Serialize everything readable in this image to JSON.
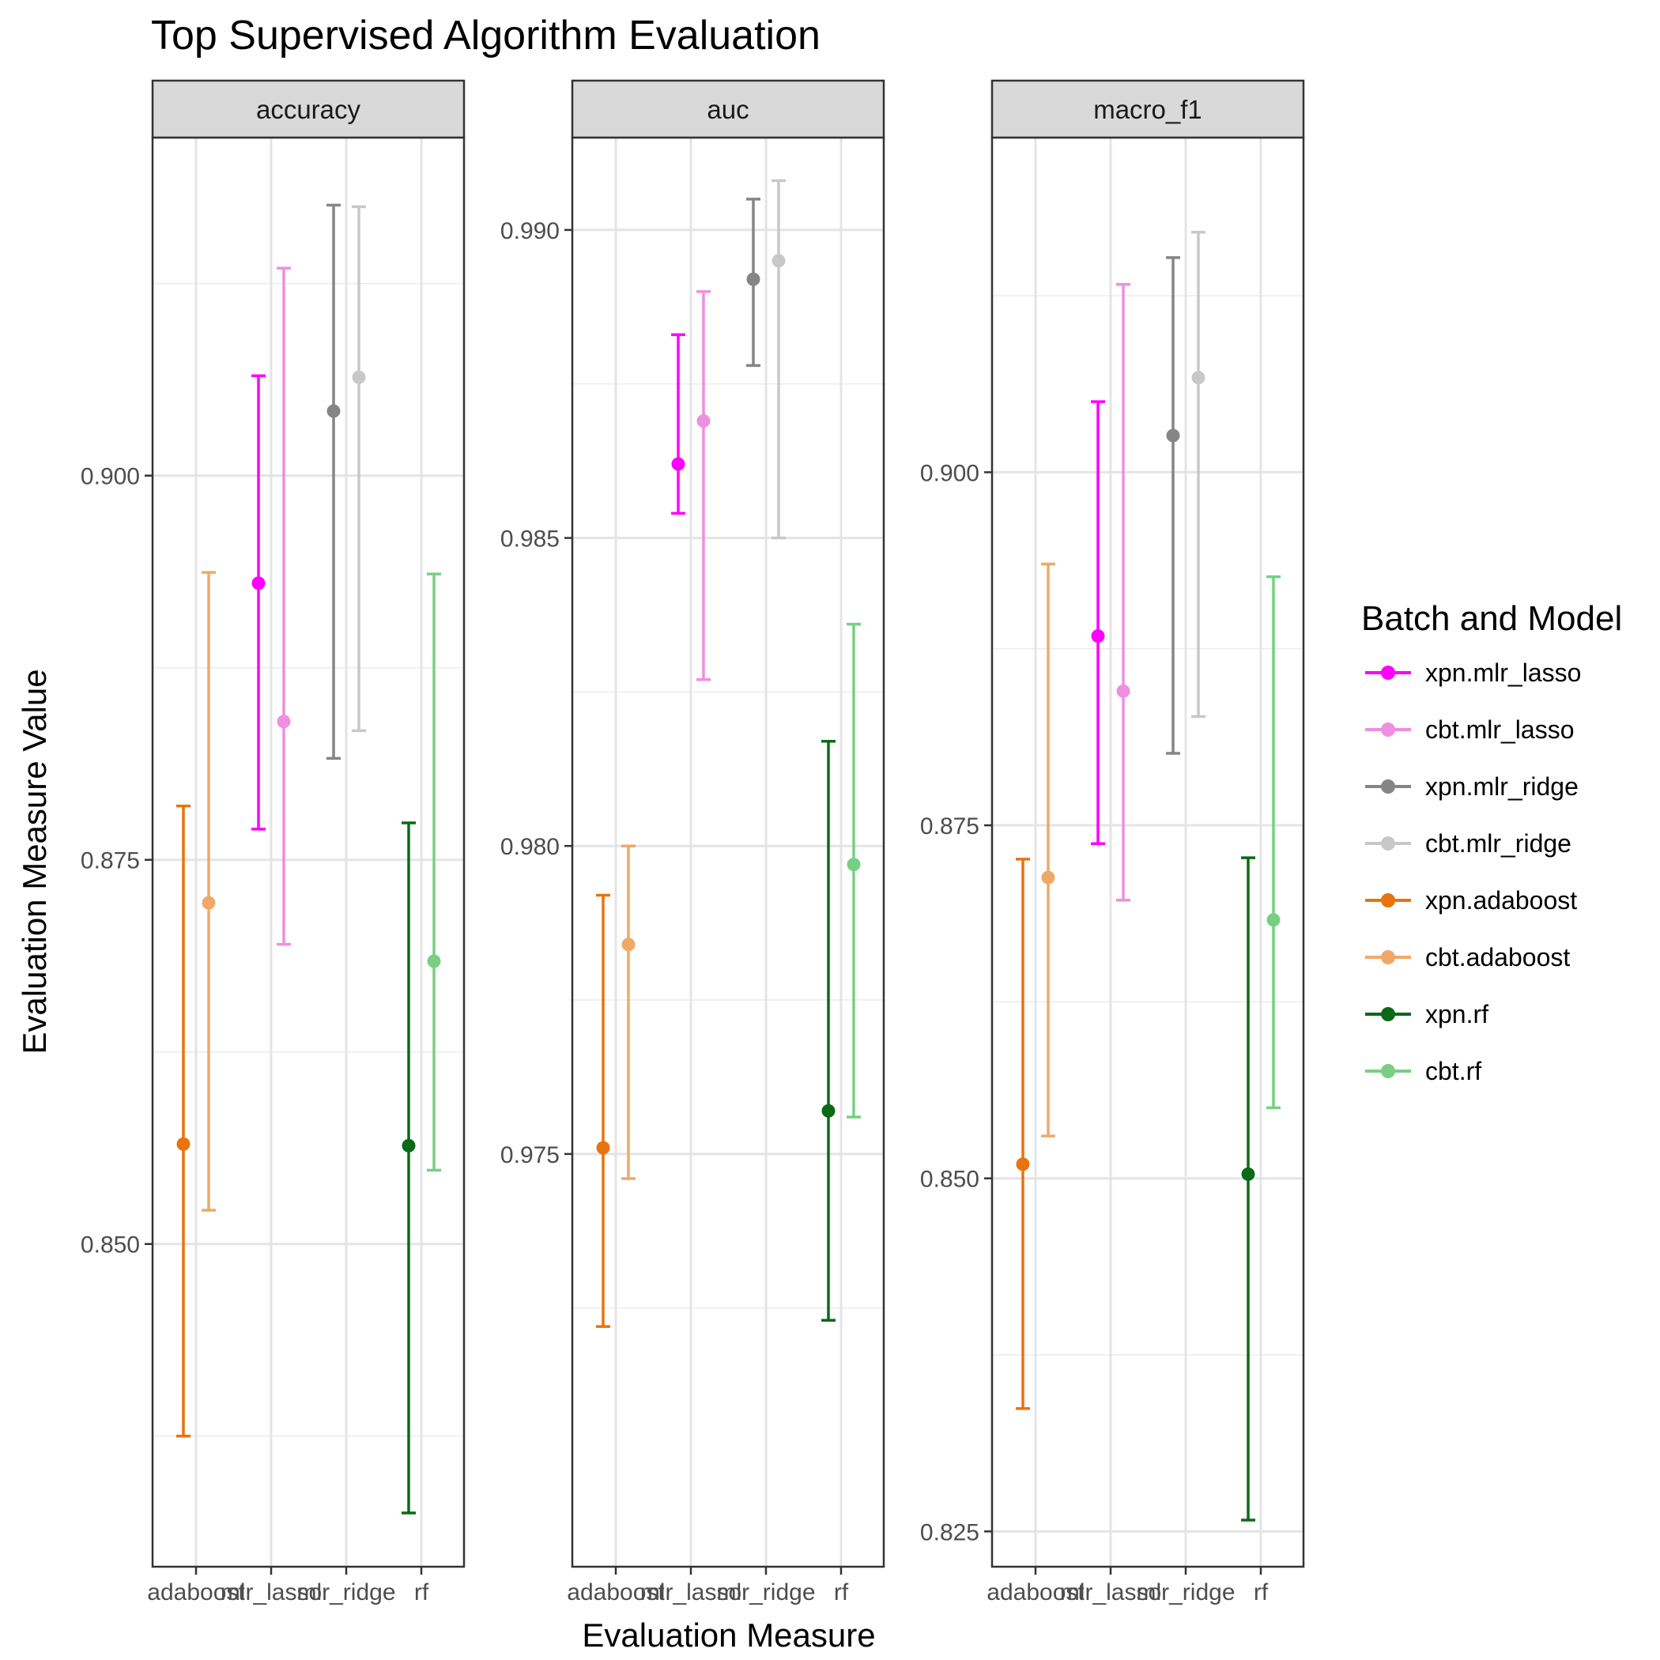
{
  "chart_data": {
    "type": "scatter",
    "title": "Top Supervised Algorithm Evaluation",
    "xlabel": "Evaluation Measure",
    "ylabel": "Evaluation Measure Value",
    "categories": [
      "adaboost",
      "mlr_lasso",
      "mlr_ridge",
      "rf"
    ],
    "legend": {
      "title": "Batch and Model",
      "placement": "right",
      "entries": [
        "xpn.mlr_lasso",
        "cbt.mlr_lasso",
        "xpn.mlr_ridge",
        "cbt.mlr_ridge",
        "xpn.adaboost",
        "cbt.adaboost",
        "xpn.rf",
        "cbt.rf"
      ]
    },
    "series_colors": {
      "xpn.mlr_lasso": "#ff00ff",
      "cbt.mlr_lasso": "#ee8fe0",
      "xpn.mlr_ridge": "#858585",
      "cbt.mlr_ridge": "#c8c8c8",
      "xpn.adaboost": "#e8730f",
      "cbt.adaboost": "#f0a868",
      "xpn.rf": "#0b6a16",
      "cbt.rf": "#78cf84"
    },
    "grid": true,
    "panels": [
      {
        "strip": "accuracy",
        "ylim": [
          0.829,
          0.922
        ],
        "yticks": [
          0.85,
          0.875,
          0.9
        ],
        "ytick_labels": [
          "0.850",
          "0.875",
          "0.900"
        ],
        "points": [
          {
            "series": "xpn.adaboost",
            "category": "adaboost",
            "y": 0.8565,
            "lo": 0.8375,
            "hi": 0.8785
          },
          {
            "series": "cbt.adaboost",
            "category": "adaboost",
            "y": 0.8722,
            "lo": 0.8522,
            "hi": 0.8937
          },
          {
            "series": "xpn.mlr_lasso",
            "category": "mlr_lasso",
            "y": 0.893,
            "lo": 0.877,
            "hi": 0.9065
          },
          {
            "series": "cbt.mlr_lasso",
            "category": "mlr_lasso",
            "y": 0.884,
            "lo": 0.8695,
            "hi": 0.9135
          },
          {
            "series": "xpn.mlr_ridge",
            "category": "mlr_ridge",
            "y": 0.9042,
            "lo": 0.8816,
            "hi": 0.9176
          },
          {
            "series": "cbt.mlr_ridge",
            "category": "mlr_ridge",
            "y": 0.9064,
            "lo": 0.8834,
            "hi": 0.9175
          },
          {
            "series": "xpn.rf",
            "category": "rf",
            "y": 0.8564,
            "lo": 0.8325,
            "hi": 0.8774
          },
          {
            "series": "cbt.rf",
            "category": "rf",
            "y": 0.8684,
            "lo": 0.8548,
            "hi": 0.8936
          }
        ]
      },
      {
        "strip": "auc",
        "ylim": [
          0.9683,
          0.9915
        ],
        "yticks": [
          0.975,
          0.98,
          0.985,
          0.99
        ],
        "ytick_labels": [
          "0.975",
          "0.980",
          "0.985",
          "0.990"
        ],
        "points": [
          {
            "series": "xpn.adaboost",
            "category": "adaboost",
            "y": 0.9751,
            "lo": 0.9722,
            "hi": 0.9792
          },
          {
            "series": "cbt.adaboost",
            "category": "adaboost",
            "y": 0.9784,
            "lo": 0.9746,
            "hi": 0.98
          },
          {
            "series": "xpn.mlr_lasso",
            "category": "mlr_lasso",
            "y": 0.9862,
            "lo": 0.9854,
            "hi": 0.9883
          },
          {
            "series": "cbt.mlr_lasso",
            "category": "mlr_lasso",
            "y": 0.9869,
            "lo": 0.9827,
            "hi": 0.989
          },
          {
            "series": "xpn.mlr_ridge",
            "category": "mlr_ridge",
            "y": 0.9892,
            "lo": 0.9878,
            "hi": 0.9905
          },
          {
            "series": "cbt.mlr_ridge",
            "category": "mlr_ridge",
            "y": 0.9895,
            "lo": 0.985,
            "hi": 0.9908
          },
          {
            "series": "xpn.rf",
            "category": "rf",
            "y": 0.9757,
            "lo": 0.9723,
            "hi": 0.9817
          },
          {
            "series": "cbt.rf",
            "category": "rf",
            "y": 0.9797,
            "lo": 0.9756,
            "hi": 0.9836
          }
        ]
      },
      {
        "strip": "macro_f1",
        "ylim": [
          0.8225,
          0.9237
        ],
        "yticks": [
          0.825,
          0.85,
          0.875,
          0.9
        ],
        "ytick_labels": [
          "0.825",
          "0.850",
          "0.875",
          "0.900"
        ],
        "points": [
          {
            "series": "xpn.adaboost",
            "category": "adaboost",
            "y": 0.851,
            "lo": 0.8337,
            "hi": 0.8726
          },
          {
            "series": "cbt.adaboost",
            "category": "adaboost",
            "y": 0.8713,
            "lo": 0.853,
            "hi": 0.8935
          },
          {
            "series": "xpn.mlr_lasso",
            "category": "mlr_lasso",
            "y": 0.8884,
            "lo": 0.8737,
            "hi": 0.905
          },
          {
            "series": "cbt.mlr_lasso",
            "category": "mlr_lasso",
            "y": 0.8845,
            "lo": 0.8697,
            "hi": 0.9133
          },
          {
            "series": "xpn.mlr_ridge",
            "category": "mlr_ridge",
            "y": 0.9026,
            "lo": 0.8801,
            "hi": 0.9152
          },
          {
            "series": "cbt.mlr_ridge",
            "category": "mlr_ridge",
            "y": 0.9067,
            "lo": 0.8827,
            "hi": 0.917
          },
          {
            "series": "xpn.rf",
            "category": "rf",
            "y": 0.8503,
            "lo": 0.8258,
            "hi": 0.8727
          },
          {
            "series": "cbt.rf",
            "category": "rf",
            "y": 0.8683,
            "lo": 0.855,
            "hi": 0.8926
          }
        ]
      }
    ]
  }
}
